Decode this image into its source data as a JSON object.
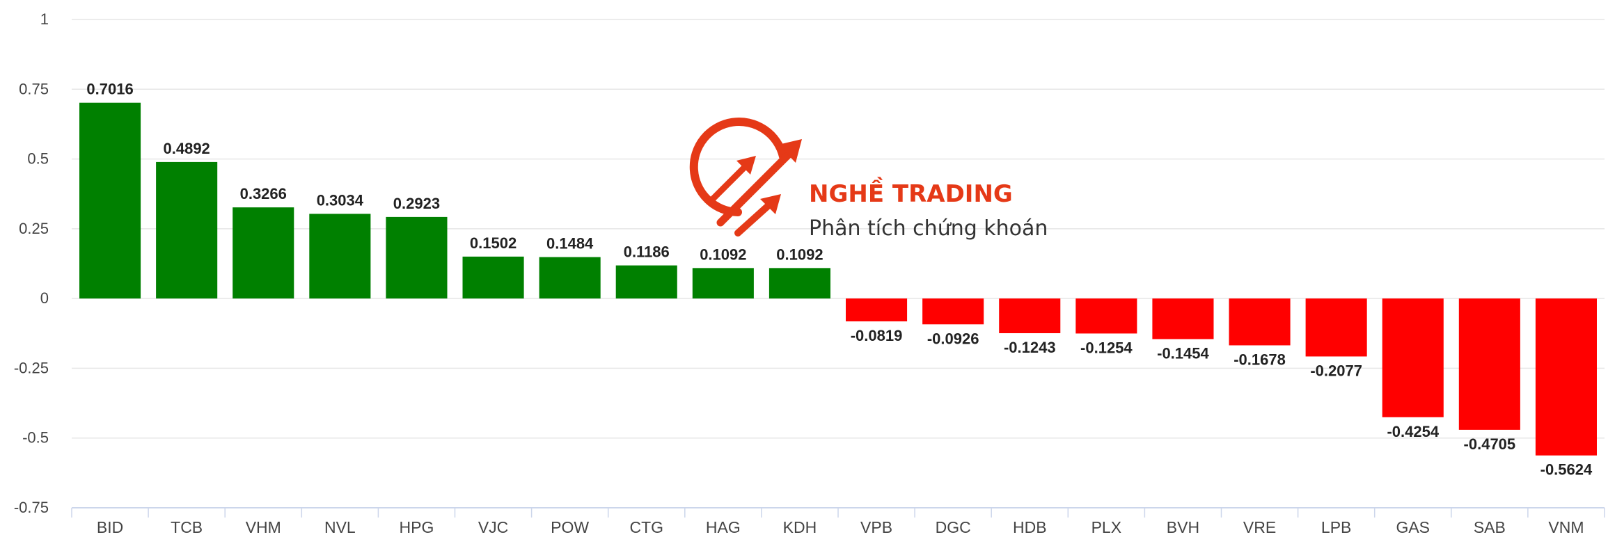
{
  "chart_data": {
    "type": "bar",
    "categories": [
      "BID",
      "TCB",
      "VHM",
      "NVL",
      "HPG",
      "VJC",
      "POW",
      "CTG",
      "HAG",
      "KDH",
      "VPB",
      "DGC",
      "HDB",
      "PLX",
      "BVH",
      "VRE",
      "LPB",
      "GAS",
      "SAB",
      "VNM"
    ],
    "values": [
      0.7016,
      0.4892,
      0.3266,
      0.3034,
      0.2923,
      0.1502,
      0.1484,
      0.1186,
      0.1092,
      0.1092,
      -0.0819,
      -0.0926,
      -0.1243,
      -0.1254,
      -0.1454,
      -0.1678,
      -0.2077,
      -0.4254,
      -0.4705,
      -0.5624
    ],
    "value_labels": [
      "0.7016",
      "0.4892",
      "0.3266",
      "0.3034",
      "0.2923",
      "0.1502",
      "0.1484",
      "0.1186",
      "0.1092",
      "0.1092",
      "-0.0819",
      "-0.0926",
      "-0.1243",
      "-0.1254",
      "-0.1454",
      "-0.1678",
      "-0.2077",
      "-0.4254",
      "-0.4705",
      "-0.5624"
    ],
    "yticks": [
      1,
      0.75,
      0.5,
      0.25,
      0,
      -0.25,
      -0.5,
      -0.75
    ],
    "ytick_labels": [
      "1",
      "0.75",
      "0.5",
      "0.25",
      "0",
      "-0.25",
      "-0.5",
      "-0.75"
    ],
    "ylim": [
      -0.75,
      1
    ],
    "grid": true,
    "legend": "none",
    "colors": {
      "positive": "#008000",
      "negative": "#ff0000",
      "grid": "#e6e6e6",
      "axis": "#ccd6eb"
    }
  },
  "watermark": {
    "title": "NGHỀ TRADING",
    "subtitle": "Phân tích chứng khoán",
    "title_color": "#e53917",
    "subtitle_color": "#333333",
    "logo_color": "#e53917"
  }
}
